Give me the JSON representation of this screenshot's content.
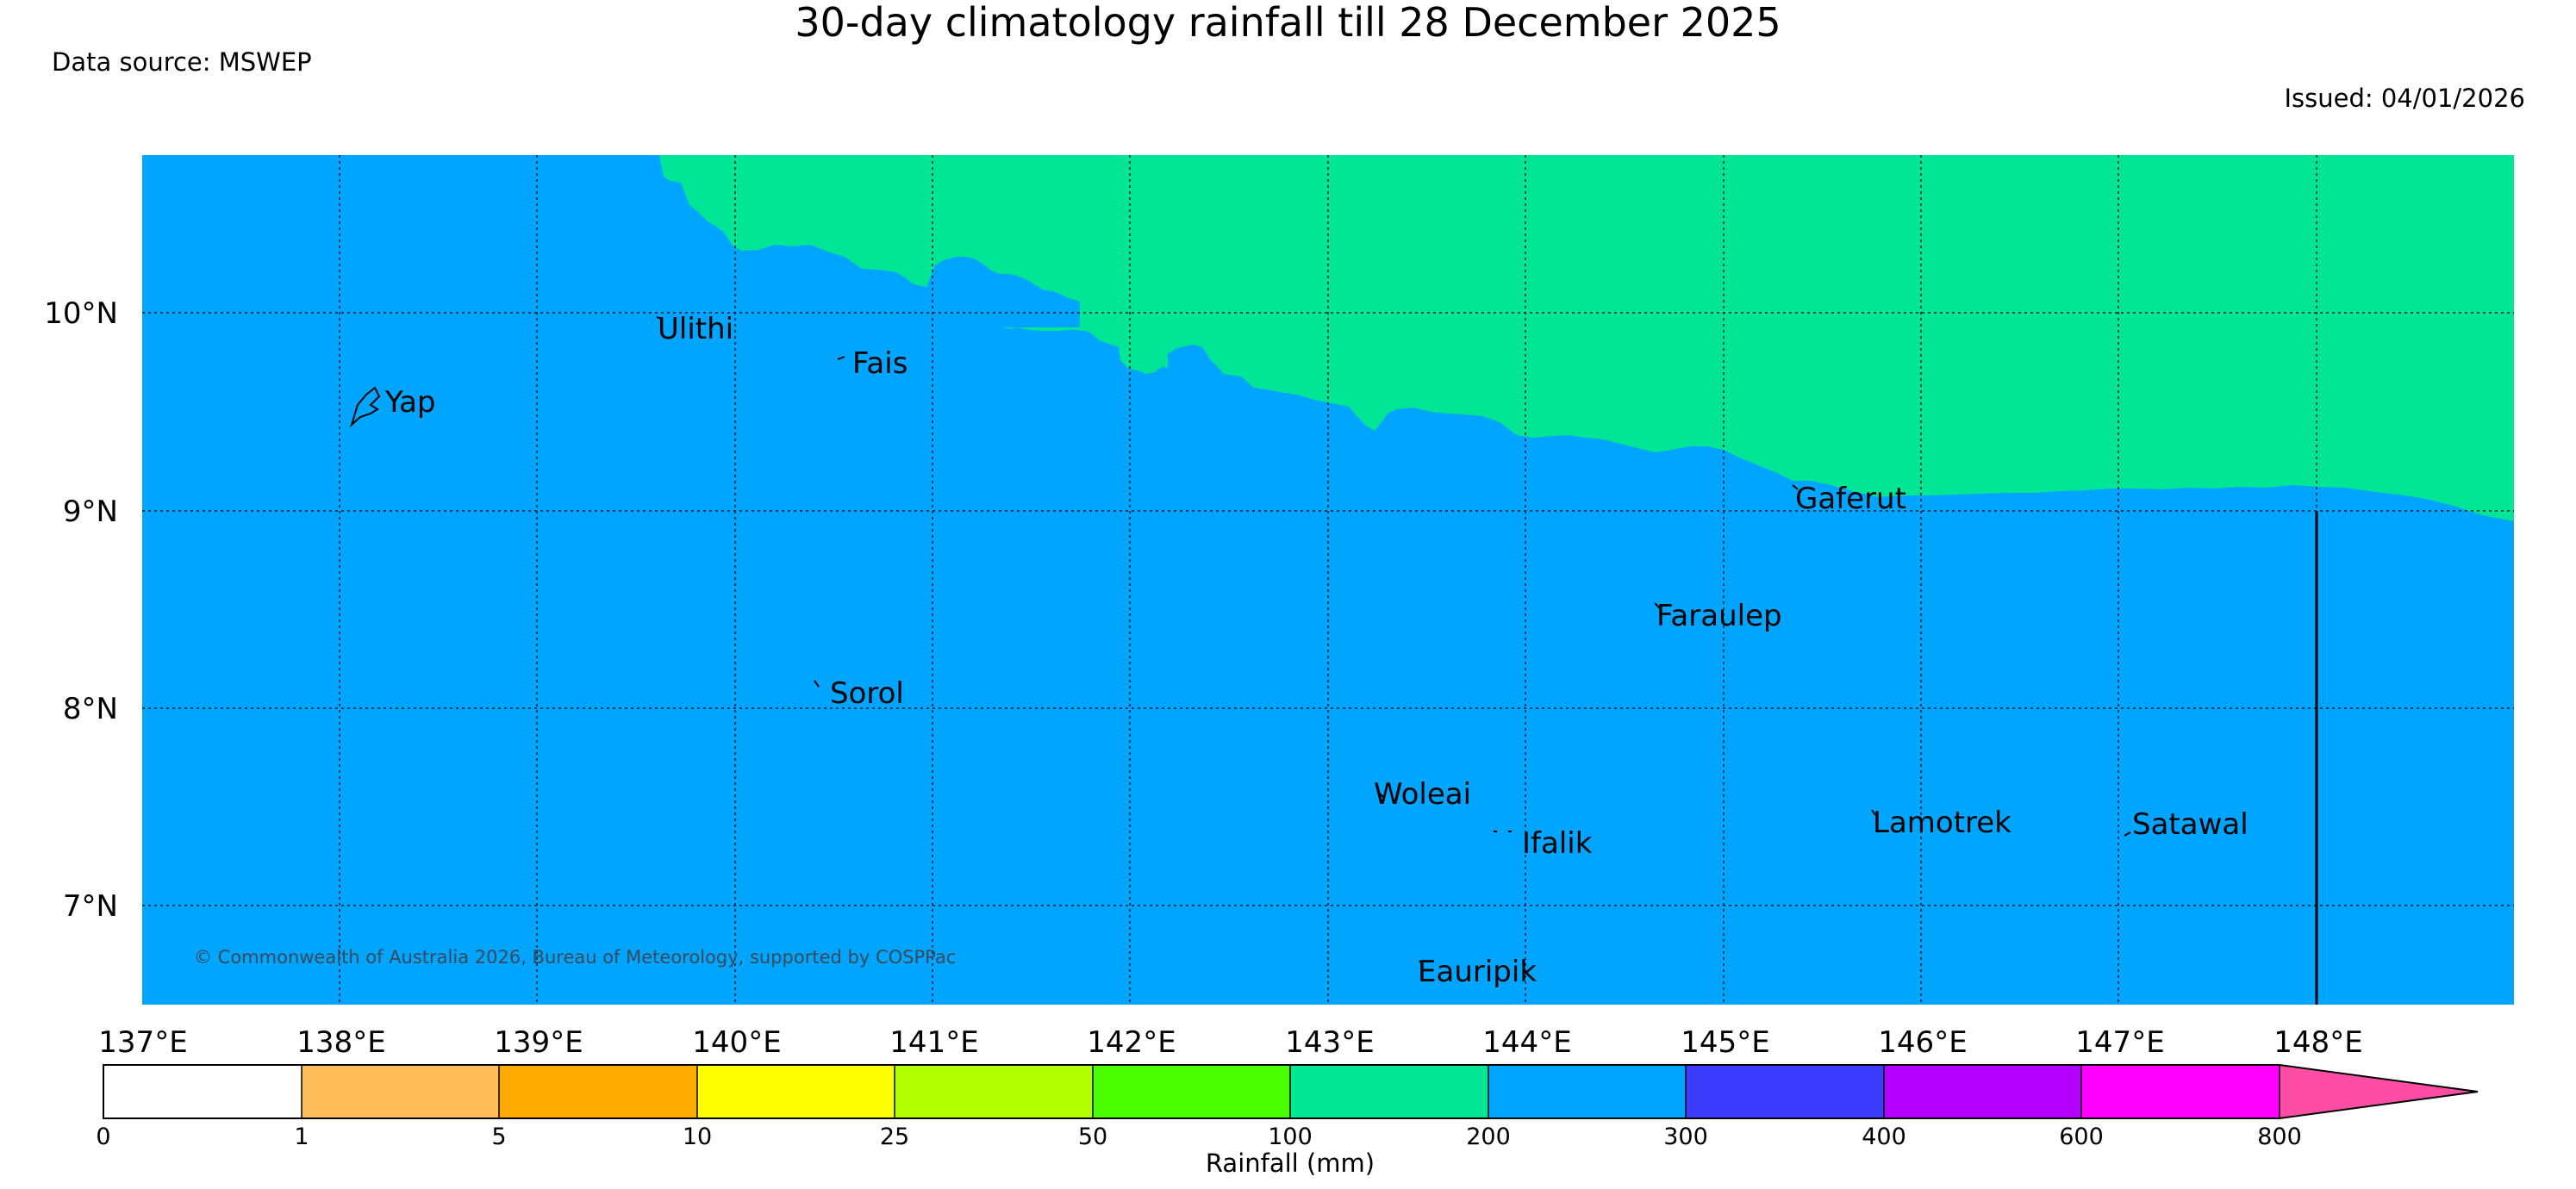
{
  "title": "30-day climatology rainfall till 28 December 2025",
  "data_source": "Data source: MSWEP",
  "issued": "Issued: 04/01/2026",
  "copyright": "© Commonwealth of Australia 2026, Bureau of Meteorology, supported by COSPPac",
  "map": {
    "lat_labels": [
      "10°N",
      "9°N",
      "8°N",
      "7°N"
    ],
    "lon_labels": [
      "137°E",
      "138°E",
      "139°E",
      "140°E",
      "141°E",
      "142°E",
      "143°E",
      "144°E",
      "145°E",
      "146°E",
      "147°E",
      "148°E"
    ],
    "places": [
      "Ulithi",
      "Fais",
      "Yap",
      "Gaferut",
      "Faraulep",
      "Sorol",
      "Woleai",
      "Ifalik",
      "Lamotrek",
      "Satawal",
      "Eauripik"
    ]
  },
  "colorbar": {
    "label": "Rainfall (mm)",
    "ticks": [
      "0",
      "1",
      "5",
      "10",
      "25",
      "50",
      "100",
      "200",
      "300",
      "400",
      "600",
      "800"
    ],
    "colors": [
      "#ffffff",
      "#ffbe5a",
      "#ffaa00",
      "#ffff00",
      "#b2ff00",
      "#4cff00",
      "#00e696",
      "#00a5ff",
      "#3c3cff",
      "#b400ff",
      "#ff00ff",
      "#ff4da6"
    ]
  },
  "legend_colors": {
    "background_fill": "#00a5ff",
    "upper_fill": "#00e696"
  }
}
